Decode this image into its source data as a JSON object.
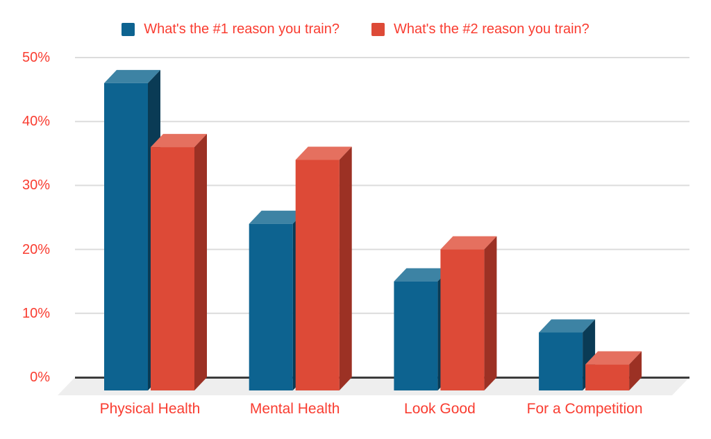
{
  "chart_data": {
    "type": "bar",
    "style": "3d-column",
    "categories": [
      "Physical Health",
      "Mental Health",
      "Look Good",
      "For a Competition"
    ],
    "series": [
      {
        "name": "What's the #1 reason you train?",
        "values": [
          46,
          24,
          15,
          7
        ],
        "color": "#0d6390",
        "color_top": "#3d83a4",
        "color_side": "#0a3b55"
      },
      {
        "name": "What's the #2 reason you train?",
        "values": [
          36,
          34,
          20,
          2
        ],
        "color": "#dd4a37",
        "color_top": "#e5705f",
        "color_side": "#9c3124"
      }
    ],
    "ylabel": "",
    "xlabel": "",
    "ylim": [
      0,
      50
    ],
    "y_axis": {
      "tick_labels": [
        "0%",
        "10%",
        "20%",
        "30%",
        "40%",
        "50%"
      ],
      "tick_values": [
        0,
        10,
        20,
        30,
        40,
        50
      ],
      "unit": "%"
    },
    "grid": true,
    "legend_position": "top",
    "colors": {
      "axis_label_text": "#f93c30",
      "legend_text": "#f93c30",
      "gridline": "#dcdcdc",
      "zero_axis_line": "#3b3b3b",
      "floor": "#eeeeee",
      "background": "#ffffff"
    }
  }
}
